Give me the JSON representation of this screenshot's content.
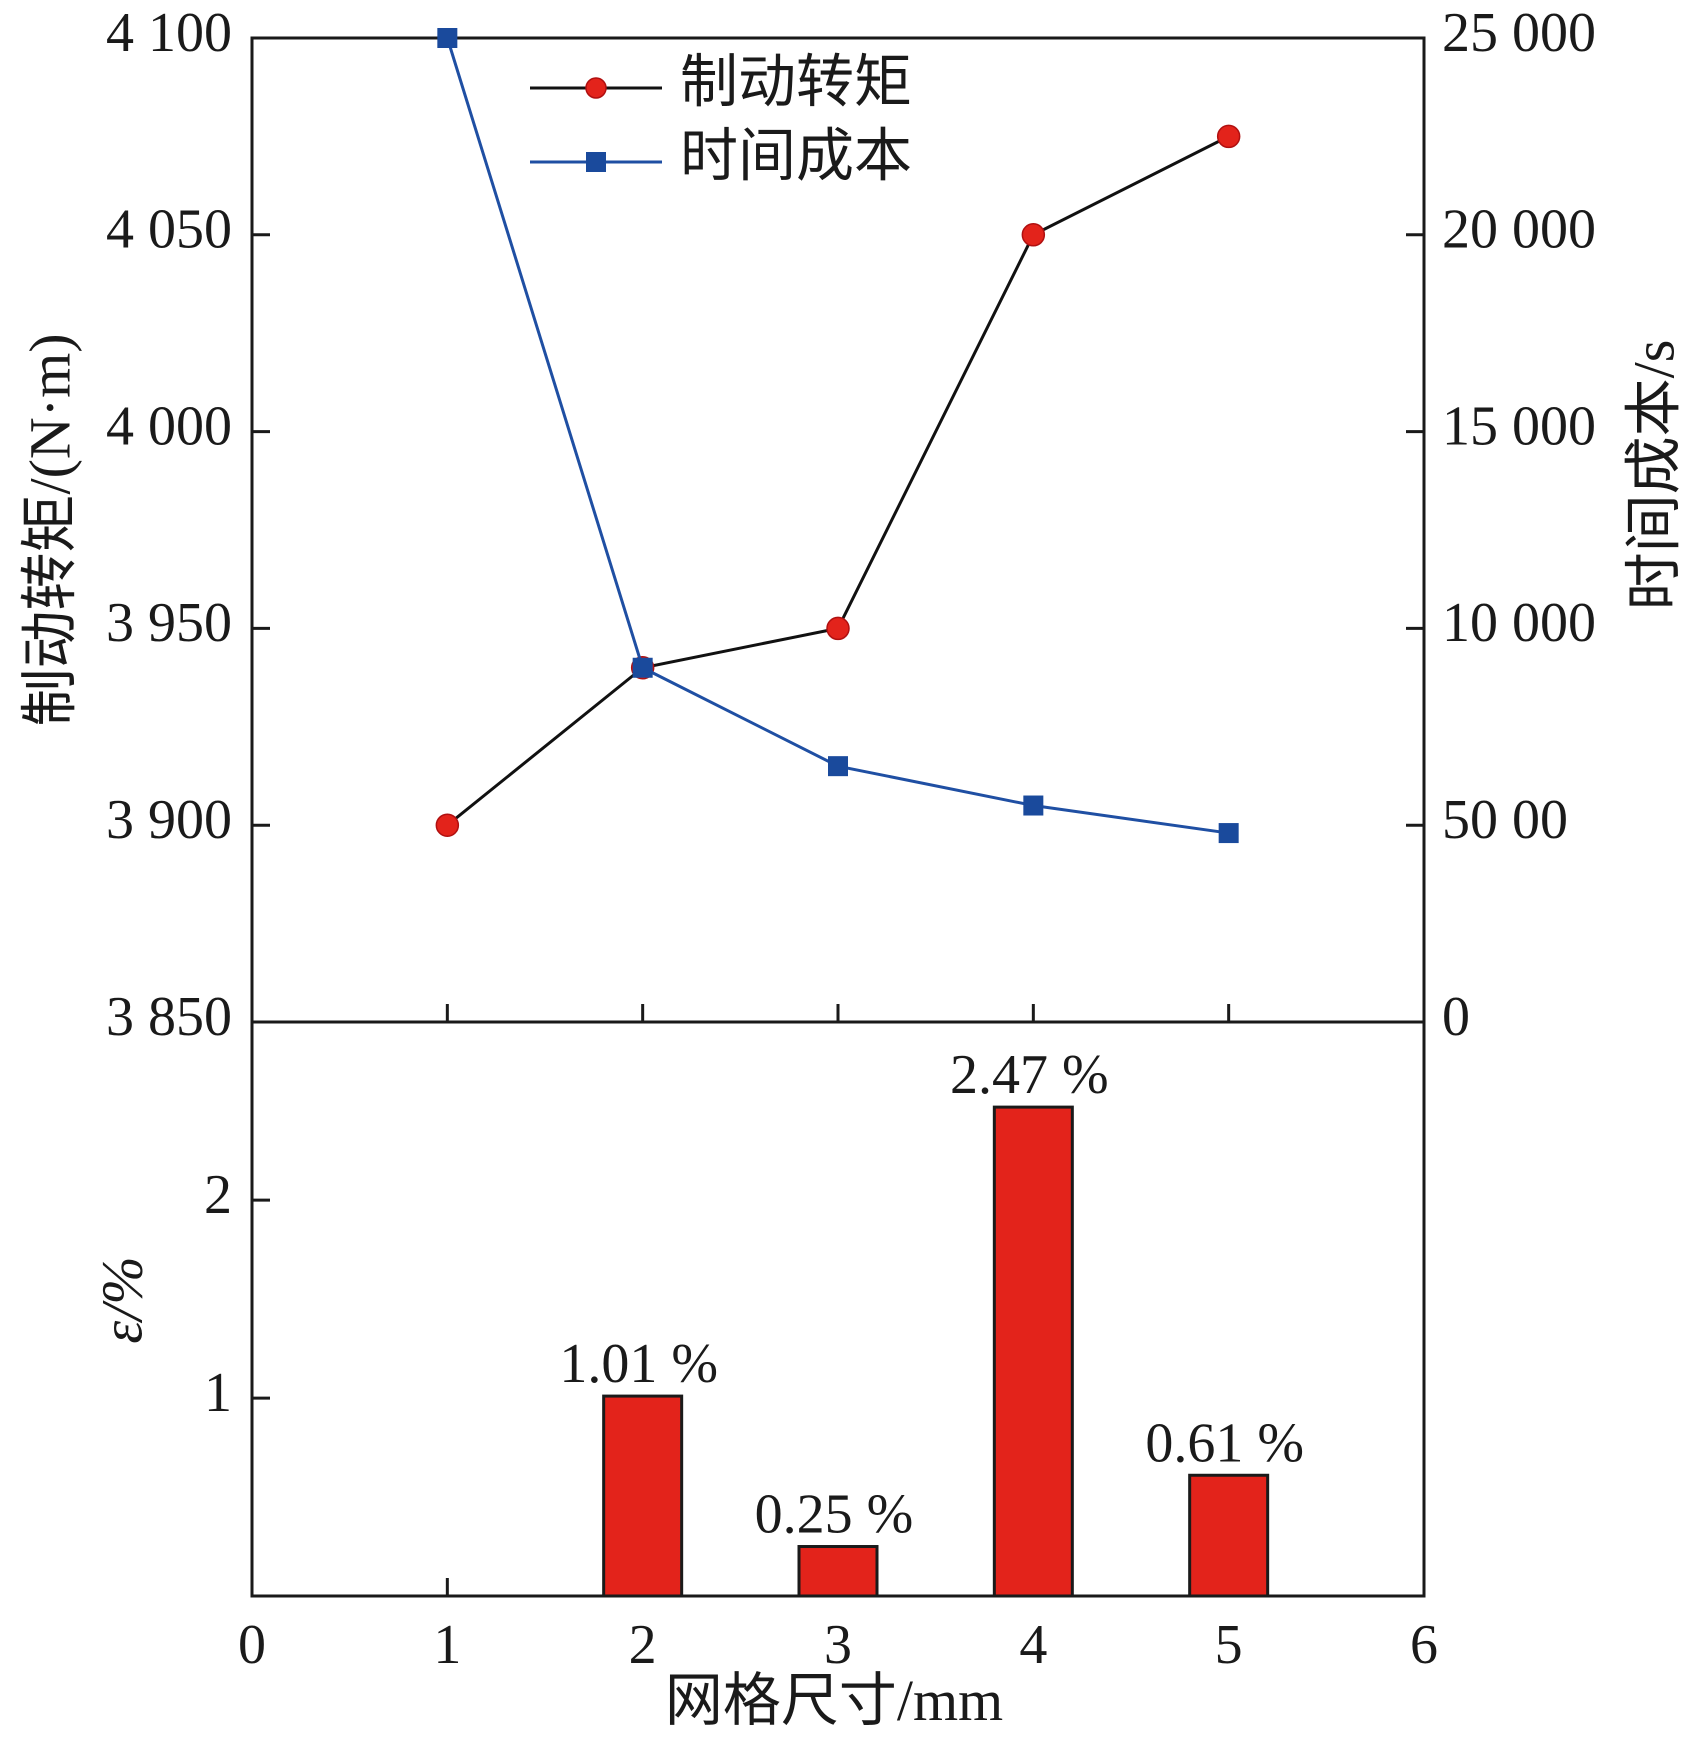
{
  "chart_data": [
    {
      "type": "line",
      "panel": "top",
      "title": "",
      "x": [
        1,
        2,
        3,
        4,
        5
      ],
      "xlim": [
        0,
        6
      ],
      "grid": false,
      "legend_position": "top-center",
      "ylabel_left": "制动转矩/(N·m)",
      "ylabel_right": "时间成本/s",
      "ylim_left": [
        3850,
        4100
      ],
      "ylim_right": [
        0,
        25000
      ],
      "yticks_left": [
        "3 850",
        "3 900",
        "3 950",
        "4 000",
        "4 050",
        "4 100"
      ],
      "yticks_right": [
        "0",
        "50 00",
        "10 000",
        "15 000",
        "20 000",
        "25 000"
      ],
      "series": [
        {
          "name": "制动转矩",
          "axis": "left",
          "color": "#111111",
          "marker_color": "#e3231b",
          "marker": "circle",
          "values": [
            3900,
            3940,
            3950,
            4050,
            4075
          ]
        },
        {
          "name": "时间成本",
          "axis": "right",
          "color": "#1f4fa3",
          "marker_color": "#1a4a9c",
          "marker": "square",
          "values": [
            25000,
            9000,
            6500,
            5500,
            4800
          ]
        }
      ]
    },
    {
      "type": "bar",
      "panel": "bottom",
      "title": "",
      "x": [
        1,
        2,
        3,
        4,
        5
      ],
      "values": [
        0,
        1.01,
        0.25,
        2.47,
        0.61
      ],
      "labels": [
        "",
        "1.01 %",
        "0.25 %",
        "2.47 %",
        "0.61 %"
      ],
      "color": "#e3231b",
      "ylim": [
        0,
        2.9
      ],
      "yticks": [
        1,
        2
      ],
      "ylabel": "ε/%",
      "xlabel": "网格尺寸/mm",
      "xticks": [
        "0",
        "1",
        "2",
        "3",
        "4",
        "5",
        "6"
      ]
    }
  ]
}
